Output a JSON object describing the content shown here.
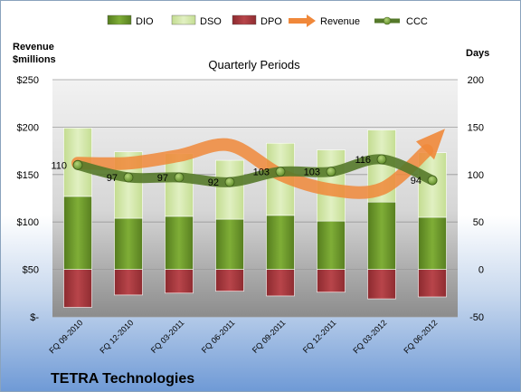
{
  "chart_data": {
    "type": "bar",
    "title": "Quarterly Periods",
    "company": "TETRA Technologies",
    "left_axis_label": [
      "Revenue",
      "$millions"
    ],
    "right_axis_label": "Days",
    "left_ticks": [
      "$250",
      "$200",
      "$150",
      "$100",
      "$50",
      "$-"
    ],
    "left_ylim": [
      0,
      250
    ],
    "right_ticks": [
      "200",
      "150",
      "100",
      "50",
      "0",
      "-50"
    ],
    "right_ylim": [
      -50,
      200
    ],
    "legend": [
      {
        "key": "dio",
        "name": "DIO"
      },
      {
        "key": "dso",
        "name": "DSO"
      },
      {
        "key": "dpo",
        "name": "DPO"
      },
      {
        "key": "revenue",
        "name": "Revenue"
      },
      {
        "key": "ccc",
        "name": "CCC"
      }
    ],
    "categories": [
      "FQ 09-2010",
      "FQ 12-2010",
      "FQ 03-2011",
      "FQ 06-2011",
      "FQ 09-2011",
      "FQ 12-2011",
      "FQ 03-2012",
      "FQ 06-2012"
    ],
    "series": [
      {
        "name": "DIO",
        "axis": "right",
        "values": [
          77,
          54,
          56,
          53,
          57,
          51,
          71,
          55
        ]
      },
      {
        "name": "DSO",
        "axis": "right",
        "values": [
          72,
          70,
          66,
          62,
          76,
          75,
          76,
          68
        ]
      },
      {
        "name": "DPO",
        "axis": "right",
        "values": [
          -40,
          -27,
          -25,
          -23,
          -28,
          -24,
          -31,
          -29
        ]
      },
      {
        "name": "Revenue",
        "axis": "left",
        "values": [
          162,
          162,
          170,
          181,
          150,
          134,
          135,
          183
        ]
      },
      {
        "name": "CCC",
        "axis": "right",
        "values": [
          110,
          97,
          97,
          92,
          103,
          103,
          116,
          94
        ]
      }
    ],
    "ccc_labels": [
      "110",
      "97",
      "97",
      "92",
      "103",
      "103",
      "116",
      "94"
    ],
    "colors": {
      "dio": "#6e9a2b",
      "dso": "#d3e8a8",
      "dpo": "#a9363b",
      "revenue": "#f0883a",
      "ccc": "#55792a"
    }
  }
}
